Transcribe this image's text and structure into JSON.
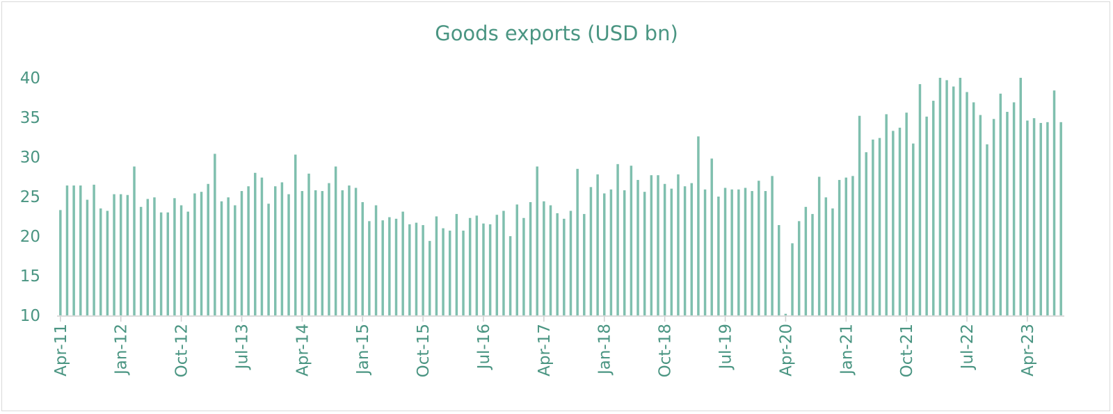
{
  "chart_data": {
    "type": "bar",
    "title": "Goods exports (USD bn)",
    "xlabel": "",
    "ylabel": "",
    "ylim": [
      10,
      40
    ],
    "yticks": [
      10,
      15,
      20,
      25,
      30,
      35,
      40
    ],
    "grid": false,
    "legend": "none",
    "colors": {
      "bar": "#7fbfae",
      "text": "#4a9582",
      "axis": "#cfcfcf"
    },
    "x_tick_labels": [
      "Apr-11",
      "Jan-12",
      "Oct-12",
      "Jul-13",
      "Apr-14",
      "Jan-15",
      "Oct-15",
      "Jul-16",
      "Apr-17",
      "Jan-18",
      "Oct-18",
      "Jul-19",
      "Apr-20",
      "Jan-21",
      "Oct-21",
      "Jul-22",
      "Apr-23"
    ],
    "x_tick_every": 9,
    "categories_start": "Apr-11",
    "categories_end": "Sep-23",
    "values": [
      23.3,
      26.4,
      26.4,
      26.4,
      24.6,
      26.5,
      23.5,
      23.2,
      25.3,
      25.3,
      25.2,
      28.8,
      23.7,
      24.7,
      24.9,
      23.0,
      23.0,
      24.8,
      23.9,
      23.1,
      25.4,
      25.6,
      26.6,
      30.4,
      24.4,
      24.9,
      23.9,
      25.7,
      26.3,
      28.0,
      27.4,
      24.1,
      26.3,
      26.8,
      25.3,
      30.3,
      25.7,
      27.9,
      25.8,
      25.7,
      26.7,
      28.8,
      25.8,
      26.4,
      26.1,
      24.3,
      21.9,
      23.9,
      22.0,
      22.4,
      22.2,
      23.1,
      21.5,
      21.7,
      21.4,
      19.4,
      22.5,
      21.0,
      20.7,
      22.8,
      20.7,
      22.3,
      22.6,
      21.6,
      21.5,
      22.7,
      23.2,
      20.0,
      24.0,
      22.3,
      24.3,
      28.8,
      24.4,
      23.9,
      22.9,
      22.2,
      23.2,
      28.5,
      22.8,
      26.2,
      27.8,
      25.4,
      25.9,
      29.1,
      25.8,
      28.9,
      27.1,
      25.6,
      27.7,
      27.7,
      26.6,
      26.0,
      27.8,
      26.3,
      26.7,
      32.6,
      25.9,
      29.8,
      25.0,
      26.1,
      25.9,
      25.9,
      26.1,
      25.7,
      27.0,
      25.7,
      27.6,
      21.4,
      10.2,
      19.1,
      21.9,
      23.7,
      22.8,
      27.5,
      24.9,
      23.5,
      27.1,
      27.4,
      27.6,
      35.2,
      30.6,
      32.2,
      32.4,
      35.4,
      33.3,
      33.7,
      35.6,
      31.7,
      39.2,
      35.1,
      37.1,
      40.0,
      39.7,
      38.9,
      40.0,
      38.2,
      36.9,
      35.3,
      31.6,
      34.8,
      38.0,
      35.7,
      36.9,
      40.0,
      34.6,
      34.9,
      34.3,
      34.4,
      38.4,
      34.4
    ]
  }
}
